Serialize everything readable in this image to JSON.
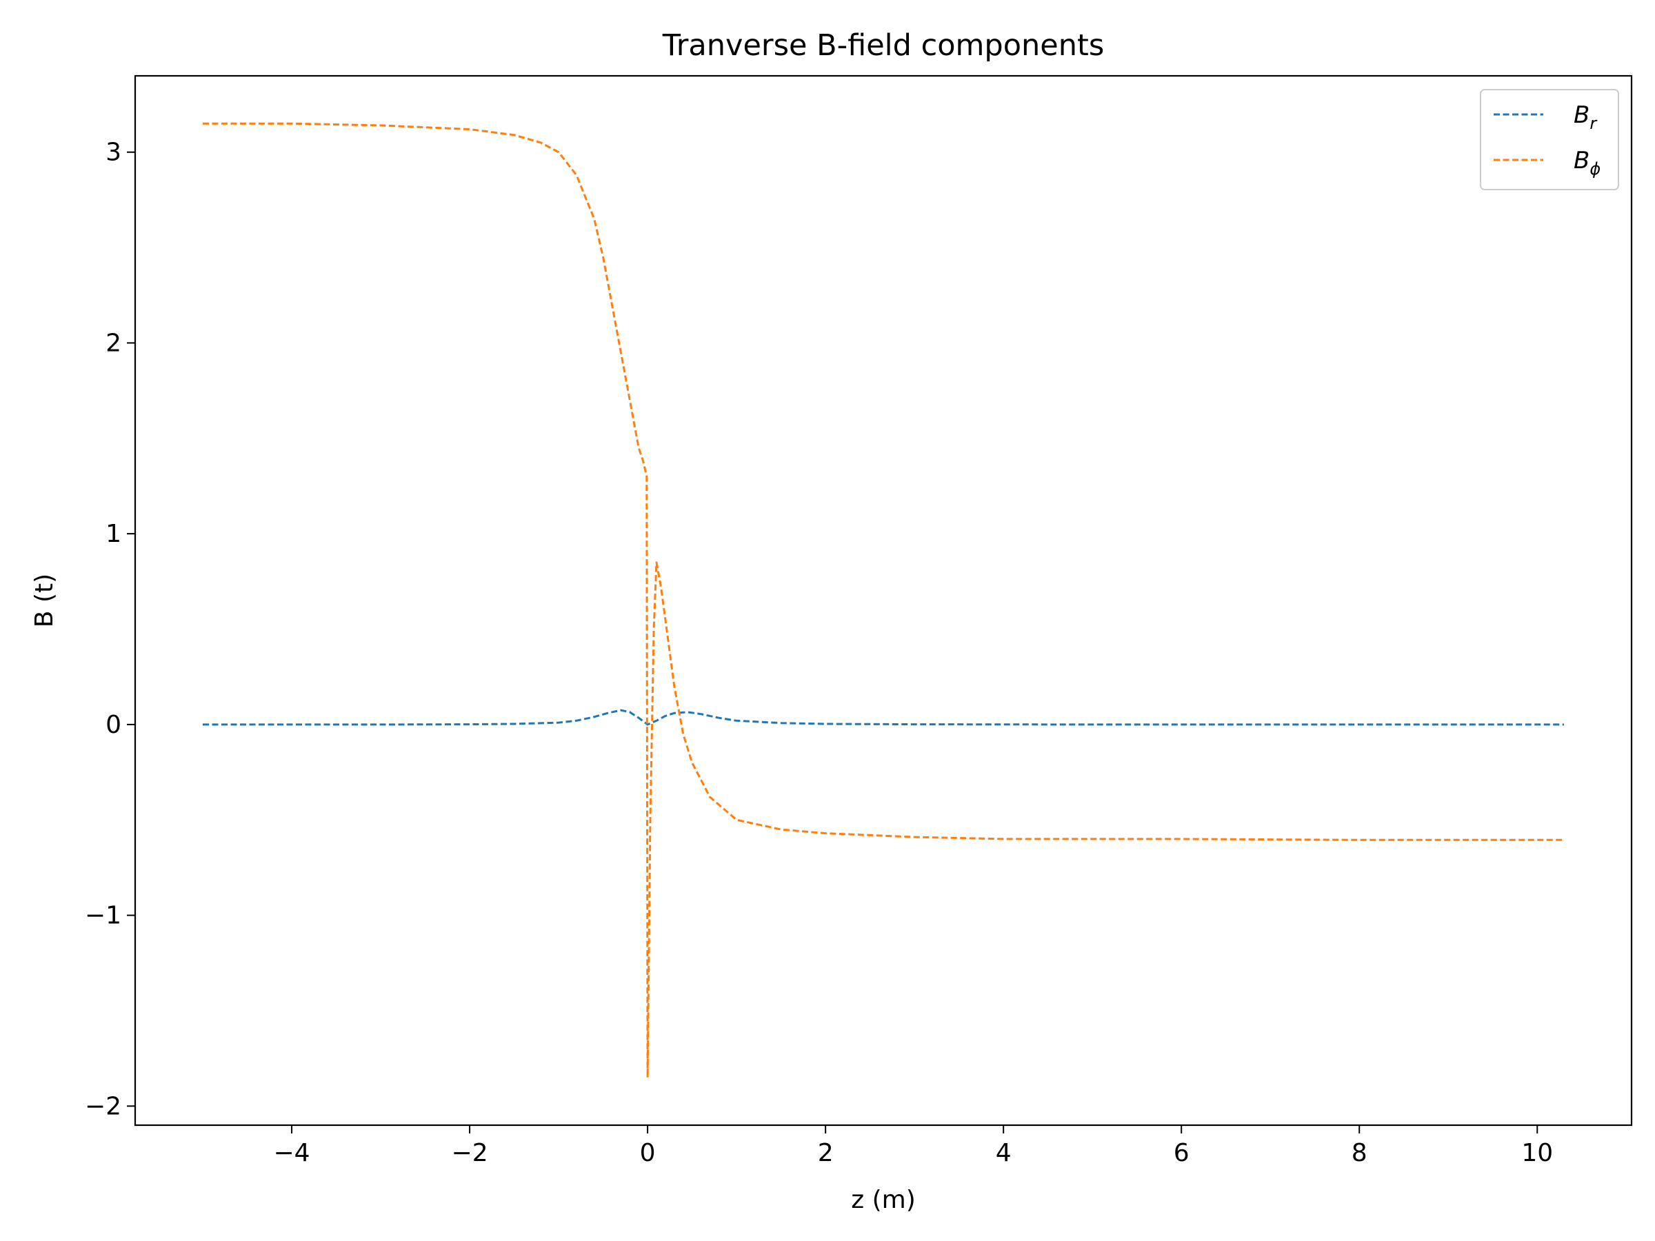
{
  "chart_data": {
    "type": "line",
    "title": "Tranverse B-field components",
    "xlabel": "z (m)",
    "ylabel": "B (t)",
    "xlim": [
      -5.76,
      11.06
    ],
    "ylim": [
      -2.1,
      3.4
    ],
    "xticks": [
      -4,
      -2,
      0,
      2,
      4,
      6,
      8,
      10
    ],
    "xtick_labels": [
      "−4",
      "−2",
      "0",
      "2",
      "4",
      "6",
      "8",
      "10"
    ],
    "yticks": [
      -2,
      -1,
      0,
      1,
      2,
      3
    ],
    "ytick_labels": [
      "−2",
      "−1",
      "0",
      "1",
      "2",
      "3"
    ],
    "grid": false,
    "legend_placement": "top-right",
    "series": [
      {
        "name": "B_r",
        "legend_main": "B",
        "legend_sub": "r",
        "color": "#1f77b4",
        "line_style": "dashed",
        "x": [
          -5.0,
          -3.0,
          -2.0,
          -1.5,
          -1.0,
          -0.8,
          -0.6,
          -0.45,
          -0.3,
          -0.2,
          -0.1,
          0.0,
          0.1,
          0.2,
          0.3,
          0.45,
          0.6,
          0.8,
          1.0,
          1.5,
          2.0,
          3.0,
          5.0,
          8.0,
          10.3
        ],
        "y": [
          0.0,
          0.0,
          0.001,
          0.003,
          0.01,
          0.02,
          0.04,
          0.06,
          0.075,
          0.065,
          0.035,
          0.0,
          0.02,
          0.045,
          0.06,
          0.065,
          0.055,
          0.035,
          0.02,
          0.008,
          0.003,
          0.001,
          0.0,
          0.0,
          0.0
        ]
      },
      {
        "name": "B_phi",
        "legend_main": "B",
        "legend_sub": "ϕ",
        "color": "#ff7f0e",
        "line_style": "dashed",
        "x": [
          -5.0,
          -4.0,
          -3.0,
          -2.0,
          -1.5,
          -1.2,
          -1.0,
          -0.8,
          -0.6,
          -0.5,
          -0.4,
          -0.3,
          -0.2,
          -0.1,
          -0.05,
          -0.01,
          0.0,
          0.005,
          0.03,
          0.07,
          0.1,
          0.15,
          0.2,
          0.3,
          0.4,
          0.5,
          0.7,
          1.0,
          1.5,
          2.0,
          3.0,
          4.0,
          6.0,
          8.0,
          10.3
        ],
        "y": [
          3.15,
          3.15,
          3.14,
          3.12,
          3.09,
          3.05,
          3.0,
          2.88,
          2.65,
          2.45,
          2.2,
          1.95,
          1.7,
          1.45,
          1.38,
          1.3,
          -1.85,
          -1.6,
          -0.5,
          0.5,
          0.85,
          0.72,
          0.55,
          0.2,
          -0.05,
          -0.2,
          -0.38,
          -0.5,
          -0.55,
          -0.57,
          -0.59,
          -0.6,
          -0.6,
          -0.605,
          -0.605
        ]
      }
    ]
  }
}
